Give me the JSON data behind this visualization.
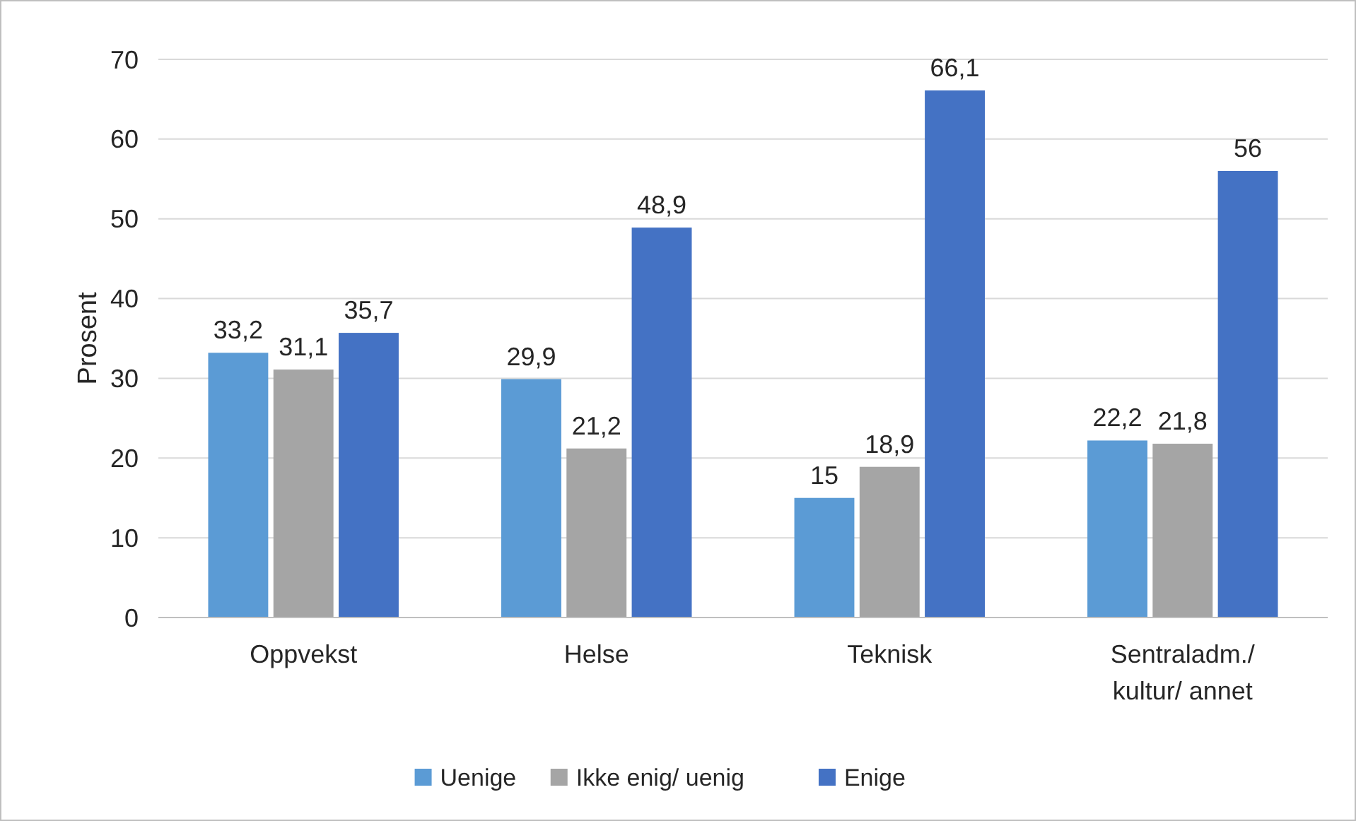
{
  "chart_data": {
    "type": "bar",
    "ylabel": "Prosent",
    "categories": [
      "Oppvekst",
      "Helse",
      "Teknisk",
      "Sentraladm./ kultur/ annet"
    ],
    "series": [
      {
        "name": "Uenige",
        "color": "#5b9bd5",
        "values": [
          33.2,
          29.9,
          15,
          22.2
        ],
        "value_labels": [
          "33,2",
          "29,9",
          "15",
          "22,2"
        ]
      },
      {
        "name": "Ikke enig/ uenig",
        "color": "#a5a5a5",
        "values": [
          31.1,
          21.2,
          18.9,
          21.8
        ],
        "value_labels": [
          "31,1",
          "21,2",
          "18,9",
          "21,8"
        ]
      },
      {
        "name": "Enige",
        "color": "#4472c4",
        "values": [
          35.7,
          48.9,
          66.1,
          56
        ],
        "value_labels": [
          "35,7",
          "48,9",
          "66,1",
          "56"
        ]
      }
    ],
    "ylim": [
      0,
      70
    ],
    "yticks": [
      0,
      10,
      20,
      30,
      40,
      50,
      60,
      70
    ],
    "grid": "y",
    "legend": "bottom"
  }
}
